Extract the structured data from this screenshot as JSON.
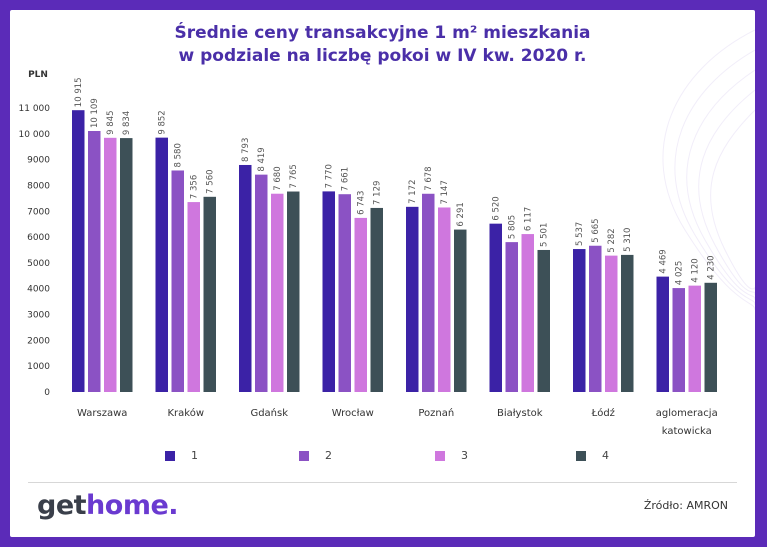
{
  "title_line1": "Średnie ceny transakcyjne 1 m² mieszkania",
  "title_line2": "w podziale na liczbę pokoi w IV kw. 2020 r.",
  "brand": {
    "part1": "get",
    "part2": "home."
  },
  "source": "Źródło: AMRON",
  "colors": {
    "1": "#3b22a6",
    "2": "#8b52c4",
    "3": "#cf77de",
    "4": "#3d5057",
    "frame": "#5b2bb8",
    "title": "#4a2fa8"
  },
  "chart_data": {
    "type": "bar",
    "ylabel": "PLN",
    "ylim": [
      0,
      11000
    ],
    "yticks": [
      "0",
      "1000",
      "2000",
      "3000",
      "4000",
      "5000",
      "6000",
      "7000",
      "8000",
      "9000",
      "10 000",
      "11 000"
    ],
    "categories": [
      "Warszawa",
      "Kraków",
      "Gdańsk",
      "Wrocław",
      "Poznań",
      "Białystok",
      "Łódź",
      "aglomeracja katowicka"
    ],
    "legend_position": "bottom",
    "grid": false,
    "series": [
      {
        "name": "1",
        "values": [
          10915,
          9852,
          8793,
          7770,
          7172,
          6520,
          5537,
          4469
        ],
        "labels": [
          "10 915",
          "9 852",
          "8 793",
          "7 770",
          "7 172",
          "6 520",
          "5 537",
          "4 469"
        ]
      },
      {
        "name": "2",
        "values": [
          10109,
          8580,
          8419,
          7661,
          7678,
          5805,
          5665,
          4025
        ],
        "labels": [
          "10 109",
          "8 580",
          "8 419",
          "7 661",
          "7 678",
          "5 805",
          "5 665",
          "4 025"
        ]
      },
      {
        "name": "3",
        "values": [
          9845,
          7356,
          7680,
          6743,
          7147,
          6117,
          5282,
          4120
        ],
        "labels": [
          "9 845",
          "7 356",
          "7 680",
          "6 743",
          "7 147",
          "6 117",
          "5 282",
          "4 120"
        ]
      },
      {
        "name": "4",
        "values": [
          9834,
          7560,
          7765,
          7129,
          6291,
          5501,
          5310,
          4230
        ],
        "labels": [
          "9 834",
          "7 560",
          "7 765",
          "7 129",
          "6 291",
          "5 501",
          "5 310",
          "4 230"
        ]
      }
    ]
  }
}
